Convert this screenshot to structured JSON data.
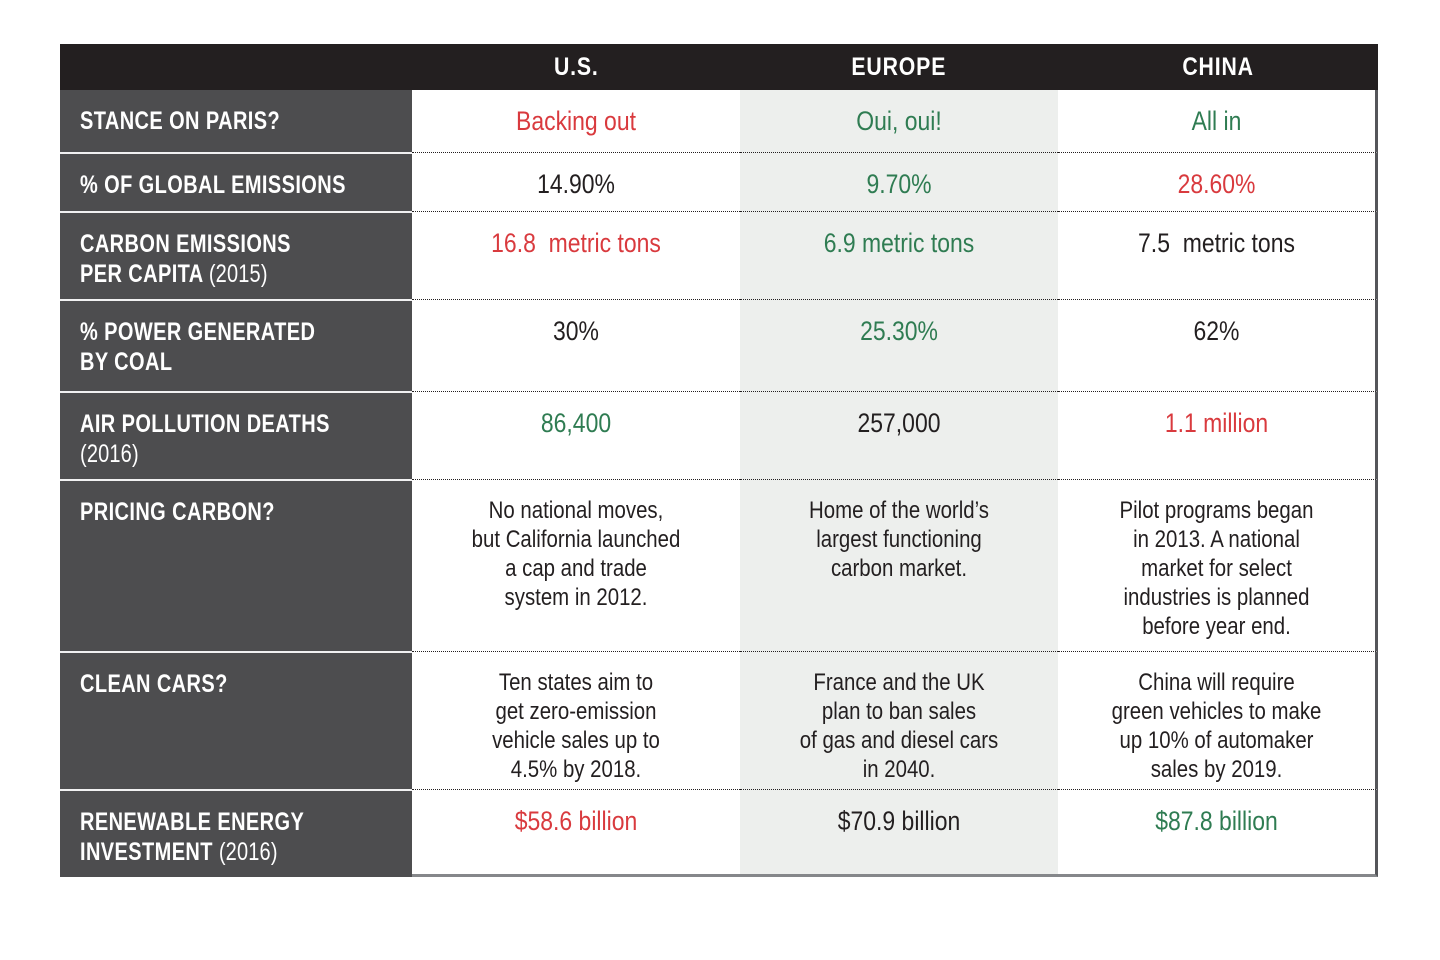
{
  "palette": {
    "red": "#d93a3e",
    "green": "#2f7c52",
    "text_black": "#231f20",
    "header_bg": "#231f20",
    "label_column_bg": "#4d4d4f",
    "europe_column_bg": "#edefed",
    "table_border_gray": "#55565a"
  },
  "chart_data": {
    "type": "table",
    "columns": [
      "U.S.",
      "EUROPE",
      "CHINA"
    ],
    "rows": [
      {
        "label": {
          "l1b": "STANCE ON PARIS?",
          "l1l": "",
          "l2b": "",
          "l2l": ""
        },
        "cells": [
          {
            "text": "Backing out",
            "color": "red"
          },
          {
            "text": "Oui, oui!",
            "color": "green"
          },
          {
            "text": "All in",
            "color": "green"
          }
        ]
      },
      {
        "label": {
          "l1b": "% OF GLOBAL EMISSIONS",
          "l1l": "",
          "l2b": "",
          "l2l": ""
        },
        "cells": [
          {
            "text": "14.90%",
            "color": "black"
          },
          {
            "text": "9.70%",
            "color": "green"
          },
          {
            "text": "28.60%",
            "color": "red"
          }
        ]
      },
      {
        "label": {
          "l1b": "CARBON EMISSIONS",
          "l1l": "",
          "l2b": "PER CAPITA ",
          "l2l": "(2015)"
        },
        "cells": [
          {
            "text": "16.8  metric tons",
            "color": "red"
          },
          {
            "text": "6.9 metric tons",
            "color": "green"
          },
          {
            "text": "7.5  metric tons",
            "color": "black"
          }
        ]
      },
      {
        "label": {
          "l1b": "% POWER GENERATED",
          "l1l": "",
          "l2b": "BY COAL",
          "l2l": ""
        },
        "cells": [
          {
            "text": "30%",
            "color": "black"
          },
          {
            "text": "25.30%",
            "color": "green"
          },
          {
            "text": "62%",
            "color": "black"
          }
        ]
      },
      {
        "label": {
          "l1b": "AIR POLLUTION DEATHS",
          "l1l": "",
          "l2b": "",
          "l2l": "(2016)"
        },
        "cells": [
          {
            "text": "86,400",
            "color": "green"
          },
          {
            "text": "257,000",
            "color": "black"
          },
          {
            "text": "1.1 million",
            "color": "red"
          }
        ]
      },
      {
        "label": {
          "l1b": "PRICING CARBON?",
          "l1l": "",
          "l2b": "",
          "l2l": ""
        },
        "cells": [
          {
            "text": "No national moves,\nbut California launched\na cap and trade\nsystem in 2012.",
            "color": "black"
          },
          {
            "text": "Home of the world’s\nlargest functioning\ncarbon market.",
            "color": "black"
          },
          {
            "text": "Pilot programs began\nin 2013. A national\nmarket for select\nindustries is planned\nbefore year end.",
            "color": "black"
          }
        ]
      },
      {
        "label": {
          "l1b": "CLEAN CARS?",
          "l1l": "",
          "l2b": "",
          "l2l": ""
        },
        "cells": [
          {
            "text": "Ten states aim to\nget zero-emission\nvehicle sales up to\n4.5% by 2018.",
            "color": "black"
          },
          {
            "text": "France and the UK\nplan to ban sales\nof gas and diesel cars\nin 2040.",
            "color": "black"
          },
          {
            "text": "China will require\ngreen vehicles to make\nup 10% of automaker\nsales by 2019.",
            "color": "black"
          }
        ]
      },
      {
        "label": {
          "l1b": "RENEWABLE ENERGY",
          "l1l": "",
          "l2b": "INVESTMENT ",
          "l2l": "(2016)"
        },
        "cells": [
          {
            "text": "$58.6 billion",
            "color": "red"
          },
          {
            "text": "$70.9 billion",
            "color": "black"
          },
          {
            "text": "$87.8 billion",
            "color": "green"
          }
        ]
      }
    ]
  }
}
